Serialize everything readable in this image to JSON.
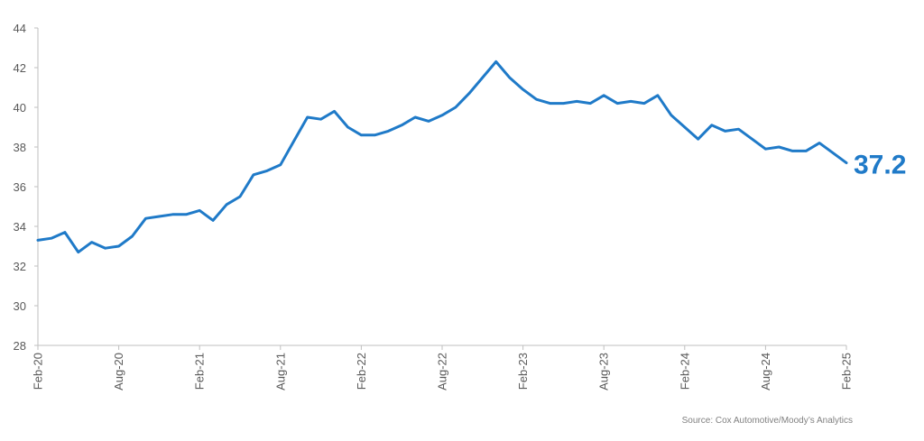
{
  "chart_data": {
    "type": "line",
    "title": "",
    "xlabel": "",
    "ylabel": "",
    "ylim": [
      28,
      44
    ],
    "yticks": [
      28,
      30,
      32,
      34,
      36,
      38,
      40,
      42,
      44
    ],
    "x_tick_labels": [
      "Feb-20",
      "Aug-20",
      "Feb-21",
      "Aug-21",
      "Feb-22",
      "Aug-22",
      "Feb-23",
      "Aug-23",
      "Feb-24",
      "Aug-24",
      "Feb-25"
    ],
    "x_start": "Feb-20",
    "x_end": "Feb-25",
    "grid": false,
    "series": [
      {
        "color": "#1f7ac8",
        "x": [
          "Feb-20",
          "Mar-20",
          "Apr-20",
          "May-20",
          "Jun-20",
          "Jul-20",
          "Aug-20",
          "Sep-20",
          "Oct-20",
          "Nov-20",
          "Dec-20",
          "Jan-21",
          "Feb-21",
          "Mar-21",
          "Apr-21",
          "May-21",
          "Jun-21",
          "Jul-21",
          "Aug-21",
          "Sep-21",
          "Oct-21",
          "Nov-21",
          "Dec-21",
          "Jan-22",
          "Feb-22",
          "Mar-22",
          "Apr-22",
          "May-22",
          "Jun-22",
          "Jul-22",
          "Aug-22",
          "Sep-22",
          "Oct-22",
          "Nov-22",
          "Dec-22",
          "Jan-23",
          "Feb-23",
          "Mar-23",
          "Apr-23",
          "May-23",
          "Jun-23",
          "Jul-23",
          "Aug-23",
          "Sep-23",
          "Oct-23",
          "Nov-23",
          "Dec-23",
          "Jan-24",
          "Feb-24",
          "Mar-24",
          "Apr-24",
          "May-24",
          "Jun-24",
          "Jul-24",
          "Aug-24",
          "Sep-24",
          "Oct-24",
          "Nov-24",
          "Dec-24",
          "Jan-25",
          "Feb-25"
        ],
        "values": [
          33.3,
          33.4,
          33.7,
          32.7,
          33.2,
          32.9,
          33.0,
          33.5,
          34.4,
          34.5,
          34.6,
          34.6,
          34.8,
          34.3,
          35.1,
          35.5,
          36.6,
          36.8,
          37.1,
          38.3,
          39.5,
          39.4,
          39.8,
          39.0,
          38.6,
          38.6,
          38.8,
          39.1,
          39.5,
          39.3,
          39.6,
          40.0,
          40.7,
          41.5,
          42.3,
          41.5,
          40.9,
          40.4,
          40.2,
          40.2,
          40.3,
          40.2,
          40.6,
          40.2,
          40.3,
          40.2,
          40.6,
          39.6,
          39.0,
          38.4,
          39.1,
          38.8,
          38.9,
          38.4,
          37.9,
          38.0,
          37.8,
          37.8,
          38.2,
          37.7,
          37.2
        ]
      }
    ],
    "end_label": "37.2"
  },
  "source": "Source: Cox Automotive/Moody’s Analytics"
}
